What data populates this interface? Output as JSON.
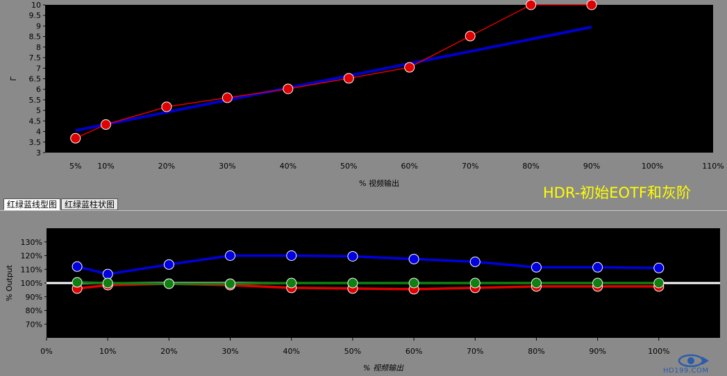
{
  "chart_data": [
    {
      "type": "line",
      "xlabel": "% 视频输出",
      "ylabel": "Γ",
      "x_ticks": [
        "5%",
        "10%",
        "20%",
        "30%",
        "40%",
        "50%",
        "60%",
        "70%",
        "80%",
        "90%",
        "100%",
        "110%"
      ],
      "x_tick_values": [
        5,
        10,
        20,
        30,
        40,
        50,
        60,
        70,
        80,
        90,
        100,
        110
      ],
      "y_ticks": [
        "3",
        "3.5",
        "4",
        "4.5",
        "5",
        "5.5",
        "6",
        "6.5",
        "7",
        "7.5",
        "8",
        "8.5",
        "9",
        "9.5",
        "10"
      ],
      "y_tick_values": [
        3,
        3.5,
        4,
        4.5,
        5,
        5.5,
        6,
        6.5,
        7,
        7.5,
        8,
        8.5,
        9,
        9.5,
        10
      ],
      "xlim": [
        0,
        110
      ],
      "ylim": [
        3,
        10
      ],
      "series": [
        {
          "color": "#0000cc",
          "markers": false,
          "x": [
            5,
            90
          ],
          "y": [
            4.05,
            8.95
          ]
        },
        {
          "color": "#e00000",
          "markers": true,
          "x": [
            5,
            10,
            20,
            30,
            40,
            50,
            60,
            70,
            80,
            90
          ],
          "y": [
            3.68,
            4.33,
            5.17,
            5.6,
            6.02,
            6.52,
            7.04,
            8.52,
            10,
            10
          ]
        }
      ]
    },
    {
      "type": "line",
      "xlabel": "% 视频输出",
      "ylabel": "% Output",
      "x_ticks": [
        "0%",
        "10%",
        "20%",
        "30%",
        "40%",
        "50%",
        "60%",
        "70%",
        "80%",
        "90%",
        "100%"
      ],
      "x_tick_values": [
        0,
        10,
        20,
        30,
        40,
        50,
        60,
        70,
        80,
        90,
        100
      ],
      "y_ticks": [
        "70%",
        "80%",
        "90%",
        "100%",
        "110%",
        "120%",
        "130%"
      ],
      "y_tick_values": [
        70,
        80,
        90,
        100,
        110,
        120,
        130
      ],
      "xlim": [
        0,
        110
      ],
      "ylim": [
        60,
        140
      ],
      "reference_line": {
        "y": 100,
        "color": "#ffffff"
      },
      "series": [
        {
          "color": "#0000e0",
          "x": [
            5,
            10,
            20,
            30,
            40,
            50,
            60,
            70,
            80,
            90,
            100
          ],
          "y": [
            112,
            106.5,
            113.5,
            120,
            120,
            119.5,
            117.5,
            115.5,
            111.5,
            111.5,
            111
          ]
        },
        {
          "color": "#e00000",
          "x": [
            5,
            10,
            20,
            30,
            40,
            50,
            60,
            70,
            80,
            90,
            100
          ],
          "y": [
            96,
            98.5,
            99.5,
            98.5,
            96.5,
            96,
            95.5,
            96.5,
            97.5,
            97.5,
            97.5
          ]
        },
        {
          "color": "#108010",
          "x": [
            5,
            10,
            20,
            30,
            40,
            50,
            60,
            70,
            80,
            90,
            100
          ],
          "y": [
            100.5,
            100,
            99.5,
            99.5,
            100,
            100,
            100,
            100,
            100,
            100,
            100
          ]
        }
      ]
    }
  ],
  "tabs": [
    {
      "label": "红绿蓝线型图",
      "active": true
    },
    {
      "label": "红绿蓝柱状图",
      "active": false
    }
  ],
  "banner": "HDR-初始EOTF和灰阶",
  "watermark": "HD199.COM"
}
